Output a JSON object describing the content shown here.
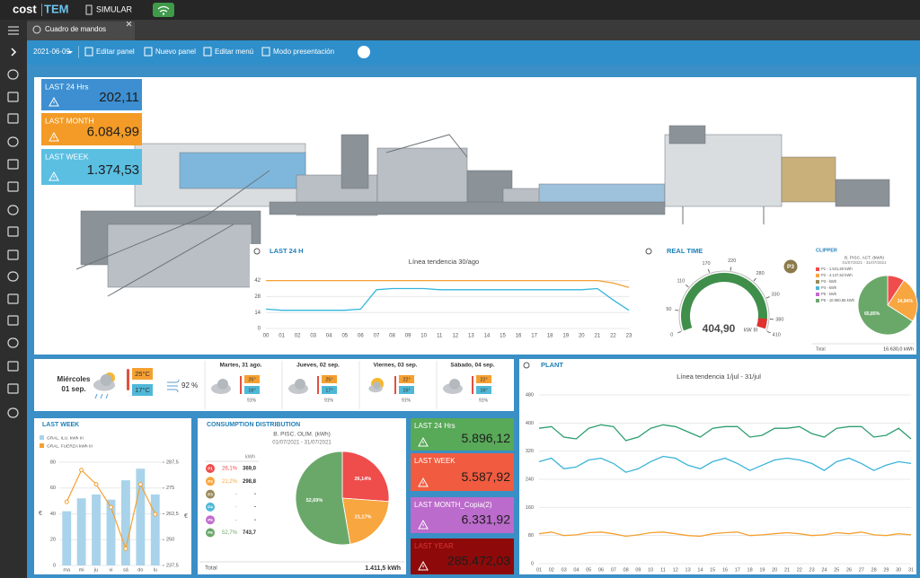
{
  "app": {
    "logo": "cost",
    "logo_accent": "TEM",
    "mode": "SIMULAR",
    "tab": "Cuadro de mandos"
  },
  "toolbar": {
    "date": "2021-06-09",
    "actions": [
      "Editar panel",
      "Nuevo panel",
      "Editar menú",
      "Modo presentación"
    ]
  },
  "kpis_top": [
    {
      "label": "LAST 24 Hrs",
      "value": "202,11",
      "color": "#3d8fd1"
    },
    {
      "label": "LAST MONTH",
      "value": "6.084,99",
      "color": "#f39b26"
    },
    {
      "label": "LAST WEEK",
      "value": "1.374,53",
      "color": "#5bbfe2"
    }
  ],
  "kpis_side": [
    {
      "label": "LAST 24 Hrs",
      "value": "5.896,12",
      "color": "#58a958"
    },
    {
      "label": "LAST WEEK",
      "value": "5.587,92",
      "color": "#f15b3f"
    },
    {
      "label": "LAST MONTH_Copia(2)",
      "value": "6.331,92",
      "color": "#bb6bcb"
    },
    {
      "label": "LAST YEAR",
      "value": "285.472,03",
      "color": "#8e0a0a"
    }
  ],
  "weather": {
    "today": {
      "day": "Miércoles",
      "date": "01 sep.",
      "max": "25°C",
      "min": "17°C",
      "humidity": "92 %"
    },
    "days": [
      {
        "label": "Martes, 31 ago.",
        "max": "26°",
        "min": "16°",
        "humidity": "91%"
      },
      {
        "label": "Jueves, 02 sep.",
        "max": "25°",
        "min": "17°",
        "humidity": "91%"
      },
      {
        "label": "Viernes, 03 sep.",
        "max": "22°",
        "min": "16°",
        "humidity": "91%"
      },
      {
        "label": "Sábado, 04 sep.",
        "max": "22°",
        "min": "16°",
        "humidity": "91%"
      }
    ]
  },
  "chart_data": [
    {
      "type": "line",
      "panel_title": "LAST 24 H",
      "title": "Línea tendencia 30/ago",
      "categories": [
        "00",
        "01",
        "02",
        "03",
        "04",
        "05",
        "06",
        "07",
        "08",
        "09",
        "10",
        "11",
        "12",
        "13",
        "14",
        "15",
        "16",
        "17",
        "18",
        "19",
        "20",
        "21",
        "22",
        "23"
      ],
      "ylim": [
        0,
        48
      ],
      "yticks": [
        0,
        14,
        28,
        42
      ],
      "grid": true,
      "series": [
        {
          "color": "#f5a030",
          "values": [
            42,
            42,
            42,
            42,
            42,
            42,
            42,
            42,
            42,
            42,
            42,
            42,
            42,
            42,
            42,
            42,
            42,
            42,
            42,
            42,
            42,
            42,
            40,
            36
          ]
        },
        {
          "color": "#35b6dc",
          "values": [
            17,
            16,
            16,
            16,
            16,
            16,
            17,
            34,
            35,
            35,
            35,
            34,
            34,
            34,
            34,
            34,
            34,
            34,
            34,
            34,
            34,
            35,
            25,
            16
          ]
        }
      ]
    },
    {
      "type": "gauge",
      "panel_title": "REAL TIME",
      "badge": "P3",
      "value": 404.9,
      "value_label": "404,90",
      "unit": "kW III",
      "ylim": [
        0,
        410
      ],
      "yticks": [
        0,
        50,
        110,
        170,
        220,
        280,
        330,
        380,
        410
      ],
      "color": "#3f8f4a"
    },
    {
      "type": "pie",
      "panel_title": "CLIPPER",
      "title": "B. PISC. ACT. (kWh)",
      "subtitle": "01/07/2021 - 31/07/2021",
      "categories": [
        "P1 - 1.531,60 kWh",
        "P2 - 4.147,52 kWh",
        "P3 - kWh",
        "P4 - kWh",
        "P5 - kWh",
        "P6 - 10.950,86 kWh"
      ],
      "values": [
        9.21,
        24.94,
        0,
        0,
        0,
        65.85
      ],
      "value_labels": [
        null,
        "24,94%",
        null,
        null,
        null,
        "65,85%"
      ],
      "colors": [
        "#ef4c4c",
        "#f8a640",
        "#9a8a5a",
        "#4fb8d8",
        "#c36bd0",
        "#6aa86a"
      ],
      "total_label": "Total",
      "total": "16.630,0 kWh"
    },
    {
      "type": "line",
      "panel_title": "PLANT",
      "title": "Línea tendencia 1/jul - 31/jul",
      "categories": [
        "01",
        "02",
        "03",
        "04",
        "05",
        "06",
        "07",
        "08",
        "09",
        "10",
        "11",
        "12",
        "13",
        "14",
        "15",
        "16",
        "17",
        "18",
        "19",
        "20",
        "21",
        "22",
        "23",
        "24",
        "25",
        "26",
        "27",
        "28",
        "29",
        "30",
        "31"
      ],
      "ylim": [
        0,
        480
      ],
      "yticks": [
        0,
        80,
        160,
        240,
        320,
        400,
        480
      ],
      "grid": true,
      "series": [
        {
          "color": "#2e9e6e",
          "values": [
            385,
            390,
            360,
            355,
            385,
            395,
            390,
            350,
            360,
            385,
            395,
            390,
            375,
            360,
            385,
            390,
            390,
            360,
            365,
            385,
            385,
            390,
            370,
            360,
            385,
            390,
            390,
            360,
            365,
            385,
            355
          ]
        },
        {
          "color": "#3ab4d8",
          "values": [
            290,
            300,
            270,
            275,
            295,
            300,
            285,
            260,
            270,
            290,
            305,
            300,
            280,
            270,
            290,
            300,
            285,
            265,
            280,
            295,
            300,
            295,
            285,
            265,
            290,
            300,
            285,
            265,
            280,
            290,
            285
          ]
        },
        {
          "color": "#f5a030",
          "values": [
            85,
            90,
            80,
            82,
            88,
            90,
            85,
            78,
            82,
            88,
            90,
            85,
            80,
            78,
            85,
            88,
            90,
            80,
            82,
            85,
            88,
            85,
            80,
            82,
            88,
            85,
            90,
            82,
            80,
            85,
            82
          ]
        }
      ]
    },
    {
      "type": "bar_line",
      "panel_title": "LAST WEEK",
      "categories": [
        "ma",
        "mi",
        "ju",
        "vi",
        "sá",
        "do",
        "lu"
      ],
      "ylabel": "€",
      "y2label": "€",
      "ylim": [
        0,
        80
      ],
      "yticks": [
        0,
        20,
        40,
        60,
        80
      ],
      "y2lim": [
        237.5,
        287.5
      ],
      "y2ticks": [
        {
          "value": 237.5,
          "label": "237,5"
        },
        250,
        {
          "value": 262.5,
          "label": "262,5"
        },
        275,
        {
          "value": 287.5,
          "label": "287,5"
        }
      ],
      "grid": true,
      "series": [
        {
          "name": "GRAL. ILU. kWh III",
          "color": "#a9d3ea",
          "values": [
            42,
            52,
            55,
            51,
            66,
            75,
            55
          ]
        },
        {
          "name": "GRAL. FUERZA kWh III",
          "color": "#f5a030",
          "axis": "y2",
          "values": [
            268.3,
            283.7,
            276.8,
            265.7,
            245.6,
            276.8,
            262.3
          ]
        }
      ]
    },
    {
      "type": "pie",
      "panel_title": "CONSUMPTION DISTRIBUTION",
      "title": "B. PISC. OLIM. (kWh)",
      "subtitle": "01/07/2021 - 31/07/2021",
      "categories": [
        "P1",
        "P2",
        "P3",
        "P4",
        "P5",
        "P6"
      ],
      "values": [
        26.14,
        21.17,
        0,
        0,
        0,
        52.69
      ],
      "value_labels": [
        "26,14%",
        "21,17%",
        null,
        null,
        null,
        "52,69%"
      ],
      "colors": [
        "#ef4c4c",
        "#f8a640",
        "#9a8a5a",
        "#4fb8d8",
        "#c36bd0",
        "#6aa86a"
      ],
      "table": {
        "header": "kWh",
        "shares": [
          "26,1%",
          "21,2%",
          "-",
          "-",
          "-",
          "52,7%"
        ],
        "kwh": [
          "369,0",
          "298,8",
          "-",
          "-",
          "-",
          "743,7"
        ]
      },
      "total_label": "Total",
      "total": "1.411,5 kWh"
    }
  ]
}
